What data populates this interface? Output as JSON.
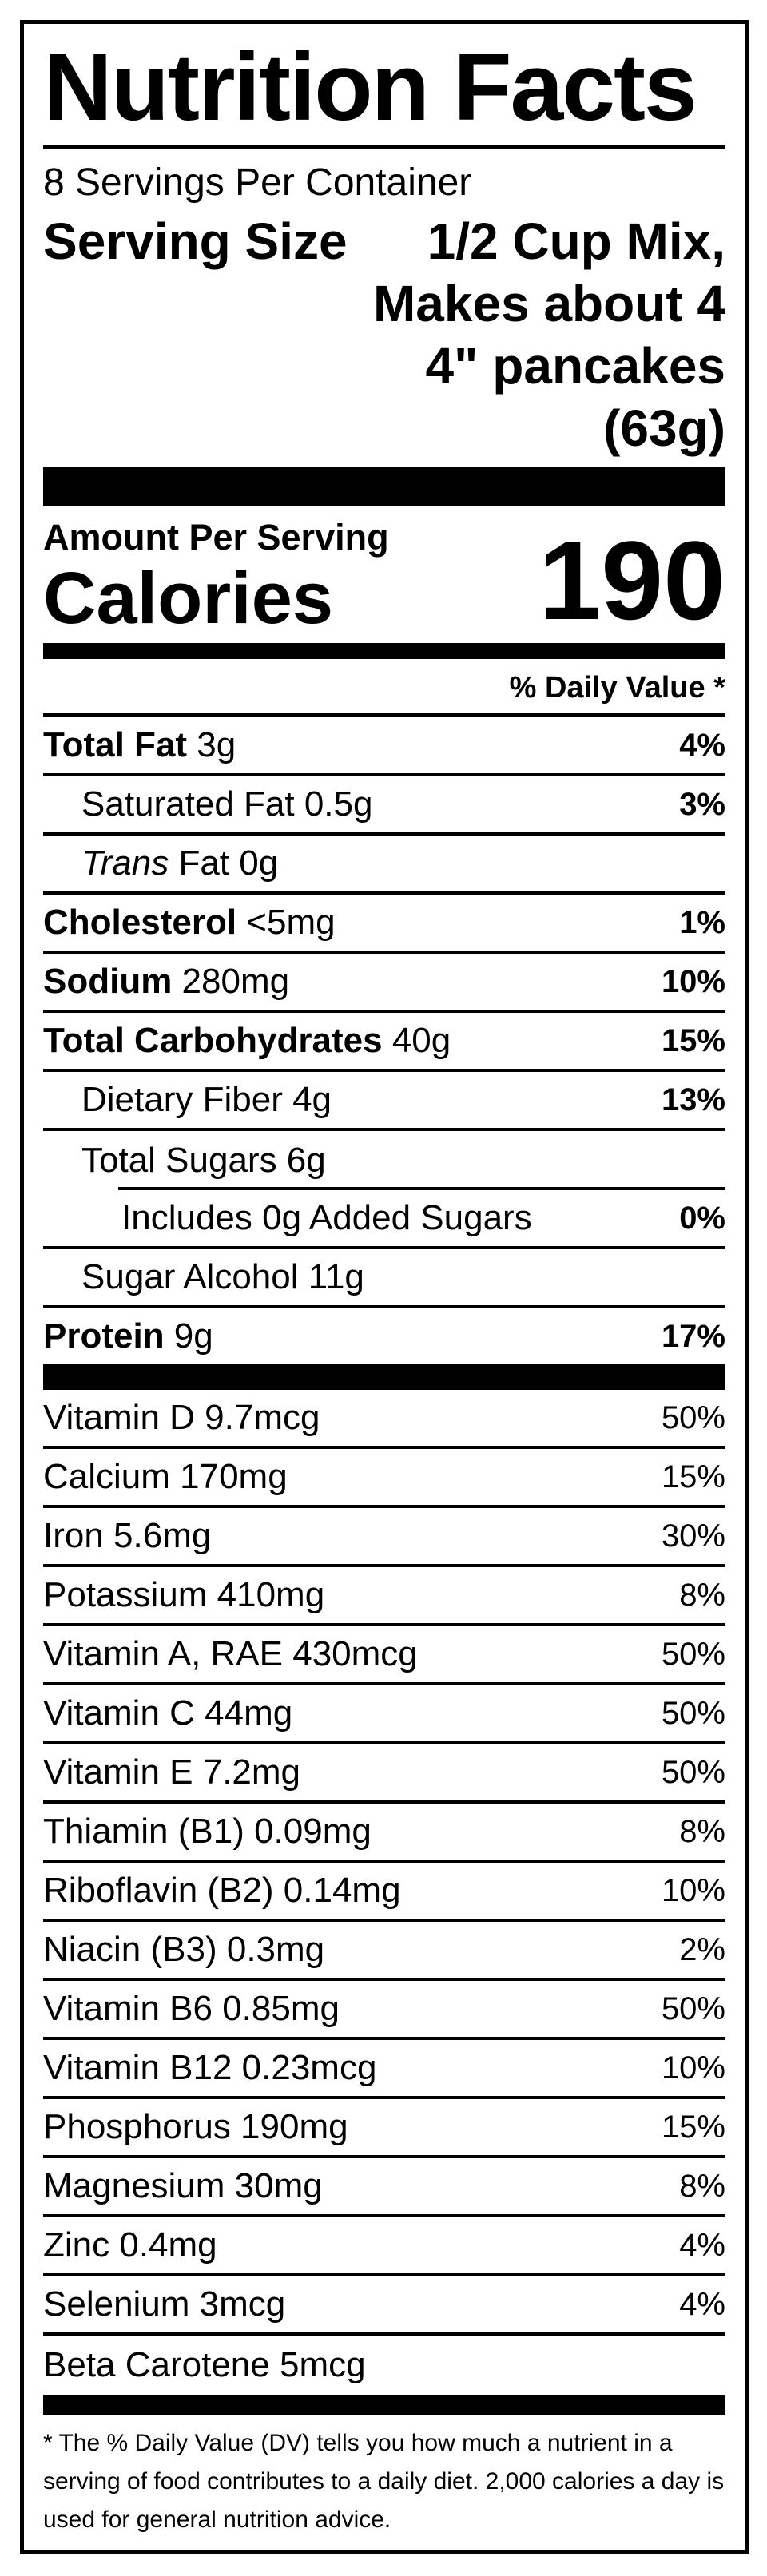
{
  "label": {
    "title": "Nutrition Facts",
    "servings_per_container": "8 Servings Per Container",
    "serving_size_label": "Serving Size",
    "serving_size_lines": [
      "1/2 Cup Mix,",
      "Makes about 4",
      "4\" pancakes",
      "(63g)"
    ],
    "amount_per_serving_label": "Amount Per Serving",
    "calories_label": "Calories",
    "calories_value": "190",
    "daily_value_header": "% Daily Value *",
    "macro_rows": [
      {
        "name": "Total Fat",
        "amount": "3g",
        "dv": "4%",
        "bold": true,
        "indent": 0
      },
      {
        "name": "Saturated Fat",
        "amount": "0.5g",
        "dv": "3%",
        "bold": false,
        "indent": 1
      },
      {
        "name": "Trans",
        "amount": "Fat 0g",
        "dv": "",
        "bold": false,
        "italic": true,
        "indent": 1
      },
      {
        "name": "Cholesterol",
        "amount": "<5mg",
        "dv": "1%",
        "bold": true,
        "indent": 0
      },
      {
        "name": "Sodium",
        "amount": "280mg",
        "dv": "10%",
        "bold": true,
        "indent": 0
      },
      {
        "name": "Total Carbohydrates",
        "amount": "40g",
        "dv": "15%",
        "bold": true,
        "indent": 0
      },
      {
        "name": "Dietary Fiber",
        "amount": "4g",
        "dv": "13%",
        "bold": false,
        "indent": 1
      },
      {
        "name": "Total Sugars",
        "amount": "6g",
        "dv": "",
        "bold": false,
        "indent": 1,
        "divider": "partial"
      },
      {
        "name": "Includes 0g Added Sugars",
        "amount": "",
        "dv": "0%",
        "bold": false,
        "indent": 2
      },
      {
        "name": "Sugar Alcohol",
        "amount": "11g",
        "dv": "",
        "bold": false,
        "indent": 1
      },
      {
        "name": "Protein",
        "amount": "9g",
        "dv": "17%",
        "bold": true,
        "indent": 0
      }
    ],
    "vitamin_rows": [
      {
        "name": "Vitamin D",
        "amount": "9.7mcg",
        "dv": "50%"
      },
      {
        "name": "Calcium",
        "amount": "170mg",
        "dv": "15%"
      },
      {
        "name": "Iron",
        "amount": "5.6mg",
        "dv": "30%"
      },
      {
        "name": "Potassium",
        "amount": "410mg",
        "dv": "8%"
      },
      {
        "name": "Vitamin A, RAE",
        "amount": "430mcg",
        "dv": "50%"
      },
      {
        "name": "Vitamin C",
        "amount": "44mg",
        "dv": "50%"
      },
      {
        "name": "Vitamin E",
        "amount": "7.2mg",
        "dv": "50%"
      },
      {
        "name": "Thiamin (B1)",
        "amount": "0.09mg",
        "dv": "8%"
      },
      {
        "name": "Riboflavin (B2)",
        "amount": "0.14mg",
        "dv": "10%"
      },
      {
        "name": "Niacin (B3)",
        "amount": "0.3mg",
        "dv": "2%"
      },
      {
        "name": "Vitamin B6",
        "amount": "0.85mg",
        "dv": "50%"
      },
      {
        "name": "Vitamin B12",
        "amount": "0.23mcg",
        "dv": "10%"
      },
      {
        "name": "Phosphorus",
        "amount": "190mg",
        "dv": "15%"
      },
      {
        "name": "Magnesium",
        "amount": "30mg",
        "dv": "8%"
      },
      {
        "name": "Zinc",
        "amount": "0.4mg",
        "dv": "4%"
      },
      {
        "name": "Selenium",
        "amount": "3mcg",
        "dv": "4%"
      },
      {
        "name": "Beta Carotene",
        "amount": "5mcg",
        "dv": ""
      }
    ],
    "footnote": "* The % Daily Value (DV) tells you how much a nutrient in a serving of food contributes to a daily diet. 2,000 calories a day is used for general nutrition advice.",
    "colors": {
      "ink": "#000000",
      "background": "#ffffff"
    }
  }
}
